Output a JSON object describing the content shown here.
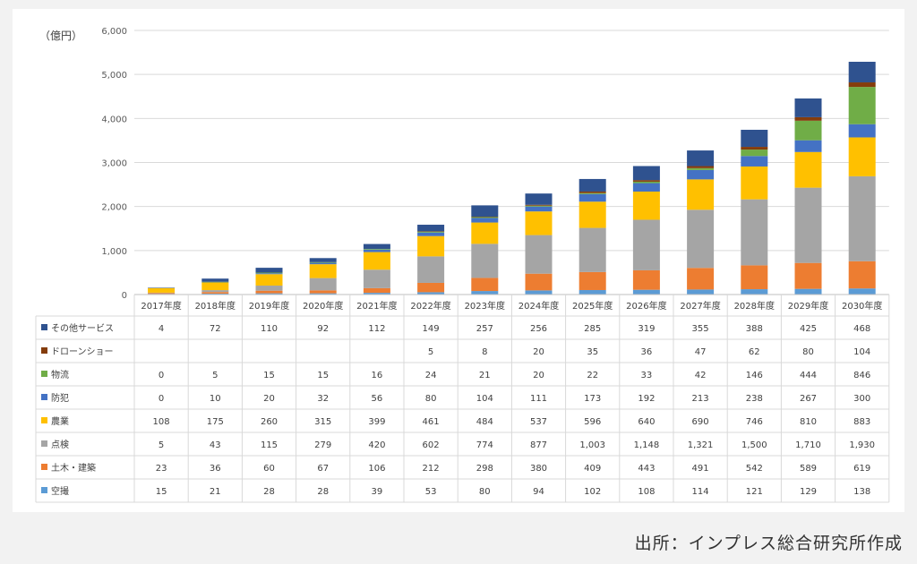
{
  "chart_data": {
    "type": "bar",
    "stacked": true,
    "unit_label": "（億円）",
    "ylim": [
      0,
      6000
    ],
    "yticks": [
      "0",
      "1,000",
      "2,000",
      "3,000",
      "4,000",
      "5,000",
      "6,000"
    ],
    "yticks_values": [
      0,
      1000,
      2000,
      3000,
      4000,
      5000,
      6000
    ],
    "grid": true,
    "categories": [
      "2017年度",
      "2018年度",
      "2019年度",
      "2020年度",
      "2021年度",
      "2022年度",
      "2023年度",
      "2024年度",
      "2025年度",
      "2026年度",
      "2027年度",
      "2028年度",
      "2029年度",
      "2030年度"
    ],
    "series": [
      {
        "name": "その他サービス",
        "color": "#2f528f",
        "values": [
          4,
          72,
          110,
          92,
          112,
          149,
          257,
          256,
          285,
          319,
          355,
          388,
          425,
          468
        ],
        "labels": [
          "4",
          "72",
          "110",
          "92",
          "112",
          "149",
          "257",
          "256",
          "285",
          "319",
          "355",
          "388",
          "425",
          "468"
        ]
      },
      {
        "name": "ドローンショー",
        "color": "#843c0c",
        "values": [
          null,
          null,
          null,
          null,
          null,
          5,
          8,
          20,
          35,
          36,
          47,
          62,
          80,
          104
        ],
        "labels": [
          "",
          "",
          "",
          "",
          "",
          "5",
          "8",
          "20",
          "35",
          "36",
          "47",
          "62",
          "80",
          "104"
        ]
      },
      {
        "name": "物流",
        "color": "#70ad47",
        "values": [
          0,
          5,
          15,
          15,
          16,
          24,
          21,
          20,
          22,
          33,
          42,
          146,
          444,
          846
        ],
        "labels": [
          "0",
          "5",
          "15",
          "15",
          "16",
          "24",
          "21",
          "20",
          "22",
          "33",
          "42",
          "146",
          "444",
          "846"
        ]
      },
      {
        "name": "防犯",
        "color": "#4472c4",
        "values": [
          0,
          10,
          20,
          32,
          56,
          80,
          104,
          111,
          173,
          192,
          213,
          238,
          267,
          300
        ],
        "labels": [
          "0",
          "10",
          "20",
          "32",
          "56",
          "80",
          "104",
          "111",
          "173",
          "192",
          "213",
          "238",
          "267",
          "300"
        ]
      },
      {
        "name": "農業",
        "color": "#ffc000",
        "values": [
          108,
          175,
          260,
          315,
          399,
          461,
          484,
          537,
          596,
          640,
          690,
          746,
          810,
          883
        ],
        "labels": [
          "108",
          "175",
          "260",
          "315",
          "399",
          "461",
          "484",
          "537",
          "596",
          "640",
          "690",
          "746",
          "810",
          "883"
        ]
      },
      {
        "name": "点検",
        "color": "#a5a5a5",
        "values": [
          5,
          43,
          115,
          279,
          420,
          602,
          774,
          877,
          1003,
          1148,
          1321,
          1500,
          1710,
          1930
        ],
        "labels": [
          "5",
          "43",
          "115",
          "279",
          "420",
          "602",
          "774",
          "877",
          "1,003",
          "1,148",
          "1,321",
          "1,500",
          "1,710",
          "1,930"
        ]
      },
      {
        "name": "土木・建築",
        "color": "#ed7d31",
        "values": [
          23,
          36,
          60,
          67,
          106,
          212,
          298,
          380,
          409,
          443,
          491,
          542,
          589,
          619
        ],
        "labels": [
          "23",
          "36",
          "60",
          "67",
          "106",
          "212",
          "298",
          "380",
          "409",
          "443",
          "491",
          "542",
          "589",
          "619"
        ]
      },
      {
        "name": "空撮",
        "color": "#5b9bd5",
        "values": [
          15,
          21,
          28,
          28,
          39,
          53,
          80,
          94,
          102,
          108,
          114,
          121,
          129,
          138
        ],
        "labels": [
          "15",
          "21",
          "28",
          "28",
          "39",
          "53",
          "80",
          "94",
          "102",
          "108",
          "114",
          "121",
          "129",
          "138"
        ]
      }
    ]
  },
  "source_text": "出所：インプレス総合研究所作成"
}
